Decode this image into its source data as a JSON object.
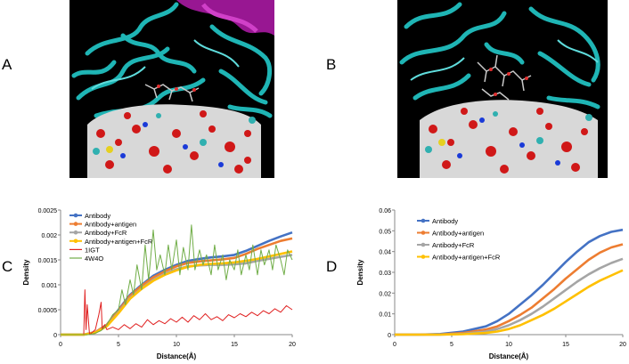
{
  "panels": {
    "a": "A",
    "b": "B",
    "c": "C",
    "d": "D"
  },
  "colors": {
    "antibody": "#4472C4",
    "antigen": "#ED7D31",
    "fcr": "#A5A5A5",
    "antigen_fcr": "#FFC000",
    "igt": "#E02020",
    "w4o": "#70AD47",
    "ribbon": "#1fb5b5",
    "ribbon_magenta": "#a0189a"
  },
  "chart_data": [
    {
      "type": "line",
      "xlabel": "Distance(Å)",
      "ylabel": "Density",
      "xlim": [
        0,
        20
      ],
      "ylim": [
        0,
        0.0025
      ],
      "xticks": [
        "0",
        "5",
        "10",
        "15",
        "20"
      ],
      "yticks": [
        "0",
        "0.0005",
        "0.001",
        "0.0015",
        "0.002",
        "0.0025"
      ],
      "legend": "top-left",
      "grid": false,
      "series": [
        {
          "name": "Antibody",
          "color_key": "antibody",
          "x": [
            0,
            2,
            3,
            4,
            5,
            6,
            7,
            8,
            9,
            10,
            11,
            12,
            13,
            14,
            15,
            16,
            17,
            18,
            19,
            20
          ],
          "y": [
            0,
            0,
            5e-05,
            0.0002,
            0.0005,
            0.0008,
            0.001,
            0.00118,
            0.0013,
            0.0014,
            0.00148,
            0.00152,
            0.00155,
            0.00157,
            0.0016,
            0.00168,
            0.00178,
            0.00188,
            0.00197,
            0.00205
          ]
        },
        {
          "name": "Antibody+antigen",
          "color_key": "antigen",
          "x": [
            0,
            2,
            3,
            4,
            5,
            6,
            7,
            8,
            9,
            10,
            11,
            12,
            13,
            14,
            15,
            16,
            17,
            18,
            19,
            20
          ],
          "y": [
            0,
            0,
            5e-05,
            0.0002,
            0.00048,
            0.00078,
            0.00098,
            0.00115,
            0.00127,
            0.00137,
            0.00144,
            0.00147,
            0.00149,
            0.00151,
            0.00154,
            0.00162,
            0.00172,
            0.0018,
            0.00188,
            0.00193
          ]
        },
        {
          "name": "Antibody+FcR",
          "color_key": "fcr",
          "x": [
            0,
            2,
            3,
            4,
            5,
            6,
            7,
            8,
            9,
            10,
            11,
            12,
            13,
            14,
            15,
            16,
            17,
            18,
            19,
            20
          ],
          "y": [
            0,
            0,
            4e-05,
            0.00018,
            0.00045,
            0.00074,
            0.00093,
            0.0011,
            0.00122,
            0.00131,
            0.00137,
            0.00139,
            0.0014,
            0.0014,
            0.00141,
            0.00143,
            0.00148,
            0.00152,
            0.00156,
            0.0016
          ]
        },
        {
          "name": "Antibody+antigen+FcR",
          "color_key": "antigen_fcr",
          "x": [
            0,
            2,
            3,
            4,
            5,
            6,
            7,
            8,
            9,
            10,
            11,
            12,
            13,
            14,
            15,
            16,
            17,
            18,
            19,
            20
          ],
          "y": [
            0,
            0,
            4e-05,
            0.00017,
            0.00043,
            0.00072,
            0.00092,
            0.00108,
            0.0012,
            0.00129,
            0.00136,
            0.0014,
            0.00142,
            0.00143,
            0.00145,
            0.00148,
            0.00152,
            0.00157,
            0.00162,
            0.00167
          ]
        },
        {
          "name": "1IGT",
          "color_key": "igt",
          "x": [
            0,
            2.0,
            2.1,
            2.2,
            2.3,
            2.5,
            3.0,
            3.3,
            3.5,
            3.6,
            3.8,
            4.0,
            4.5,
            5.0,
            5.5,
            6.0,
            6.5,
            7.0,
            7.5,
            8.0,
            8.5,
            9.0,
            9.5,
            10.0,
            10.5,
            11.0,
            11.5,
            12.0,
            12.5,
            13.0,
            13.5,
            14.0,
            14.5,
            15.0,
            15.5,
            16.0,
            16.5,
            17.0,
            17.5,
            18.0,
            18.5,
            19.0,
            19.5,
            20.0
          ],
          "y": [
            0,
            0,
            0.0009,
            0.0001,
            0.0006,
            0,
            0.0001,
            0.0004,
            0.00065,
            0.0001,
            0.0002,
            0.0001,
            0.00015,
            0.0001,
            0.0002,
            0.00012,
            0.00022,
            0.00015,
            0.0003,
            0.0002,
            0.00028,
            0.00022,
            0.00032,
            0.00025,
            0.00035,
            0.00025,
            0.00038,
            0.0003,
            0.00042,
            0.0003,
            0.00036,
            0.00028,
            0.0004,
            0.00034,
            0.00042,
            0.00036,
            0.00045,
            0.00038,
            0.00048,
            0.00042,
            0.00052,
            0.00045,
            0.00058,
            0.0005
          ]
        },
        {
          "name": "4W4O",
          "color_key": "w4o",
          "x": [
            0,
            2.0,
            2.5,
            3.0,
            3.5,
            4.0,
            4.5,
            5.0,
            5.3,
            5.6,
            6.0,
            6.3,
            6.6,
            7.0,
            7.3,
            7.6,
            8.0,
            8.3,
            8.6,
            9.0,
            9.3,
            9.6,
            10.0,
            10.3,
            10.6,
            11.0,
            11.3,
            11.6,
            12.0,
            12.3,
            12.6,
            13.0,
            13.3,
            13.6,
            14.0,
            14.3,
            14.6,
            15.0,
            15.3,
            15.6,
            16.0,
            16.3,
            16.6,
            17.0,
            17.3,
            17.6,
            18.0,
            18.3,
            18.6,
            19.0,
            19.3,
            19.6,
            20.0
          ],
          "y": [
            0,
            0,
            0,
            3e-05,
            8e-05,
            0.0002,
            0.0004,
            0.0005,
            0.0009,
            0.0006,
            0.0011,
            0.0008,
            0.0014,
            0.0009,
            0.0018,
            0.0011,
            0.0021,
            0.0013,
            0.0016,
            0.0012,
            0.0018,
            0.0013,
            0.0019,
            0.0012,
            0.00175,
            0.0013,
            0.0022,
            0.0013,
            0.0017,
            0.0014,
            0.0016,
            0.0012,
            0.0018,
            0.0013,
            0.0016,
            0.0011,
            0.0015,
            0.0013,
            0.0017,
            0.0012,
            0.0016,
            0.0013,
            0.0018,
            0.0012,
            0.0017,
            0.0014,
            0.0017,
            0.0013,
            0.0018,
            0.0015,
            0.0012,
            0.0017,
            0.0015
          ]
        }
      ]
    },
    {
      "type": "line",
      "xlabel": "Distance(Å)",
      "ylabel": "Density",
      "xlim": [
        0,
        20
      ],
      "ylim": [
        0,
        0.06
      ],
      "xticks": [
        "0",
        "5",
        "10",
        "15",
        "20"
      ],
      "yticks": [
        "0",
        "0.01",
        "0.02",
        "0.03",
        "0.04",
        "0.05",
        "0.06"
      ],
      "legend": "top-left",
      "grid": false,
      "series": [
        {
          "name": "Antibody",
          "color_key": "antibody",
          "x": [
            0,
            2,
            4,
            6,
            8,
            9,
            10,
            11,
            12,
            13,
            14,
            15,
            16,
            17,
            18,
            19,
            20
          ],
          "y": [
            0,
            0,
            0.0003,
            0.0015,
            0.004,
            0.0065,
            0.01,
            0.0145,
            0.019,
            0.024,
            0.0295,
            0.035,
            0.04,
            0.0445,
            0.0475,
            0.0495,
            0.0505
          ]
        },
        {
          "name": "Antibody+antigen",
          "color_key": "antigen",
          "x": [
            0,
            2,
            4,
            6,
            8,
            9,
            10,
            11,
            12,
            13,
            14,
            15,
            16,
            17,
            18,
            19,
            20
          ],
          "y": [
            0,
            0,
            0.0001,
            0.0008,
            0.0025,
            0.004,
            0.0065,
            0.0095,
            0.013,
            0.0175,
            0.022,
            0.027,
            0.0315,
            0.036,
            0.0395,
            0.042,
            0.0435
          ]
        },
        {
          "name": "Antibody+FcR",
          "color_key": "fcr",
          "x": [
            0,
            2,
            4,
            6,
            8,
            9,
            10,
            11,
            12,
            13,
            14,
            15,
            16,
            17,
            18,
            19,
            20
          ],
          "y": [
            0,
            0,
            0,
            0.0004,
            0.0015,
            0.0027,
            0.0045,
            0.007,
            0.01,
            0.0135,
            0.0175,
            0.0215,
            0.0255,
            0.029,
            0.032,
            0.0345,
            0.0365
          ]
        },
        {
          "name": "Antibody+antigen+FcR",
          "color_key": "antigen_fcr",
          "x": [
            0,
            2,
            4,
            6,
            8,
            9,
            10,
            11,
            12,
            13,
            14,
            15,
            16,
            17,
            18,
            19,
            20
          ],
          "y": [
            0,
            0,
            0,
            0.0002,
            0.0008,
            0.0015,
            0.0027,
            0.0045,
            0.007,
            0.0095,
            0.0125,
            0.016,
            0.0195,
            0.023,
            0.026,
            0.0285,
            0.031
          ]
        }
      ]
    }
  ]
}
